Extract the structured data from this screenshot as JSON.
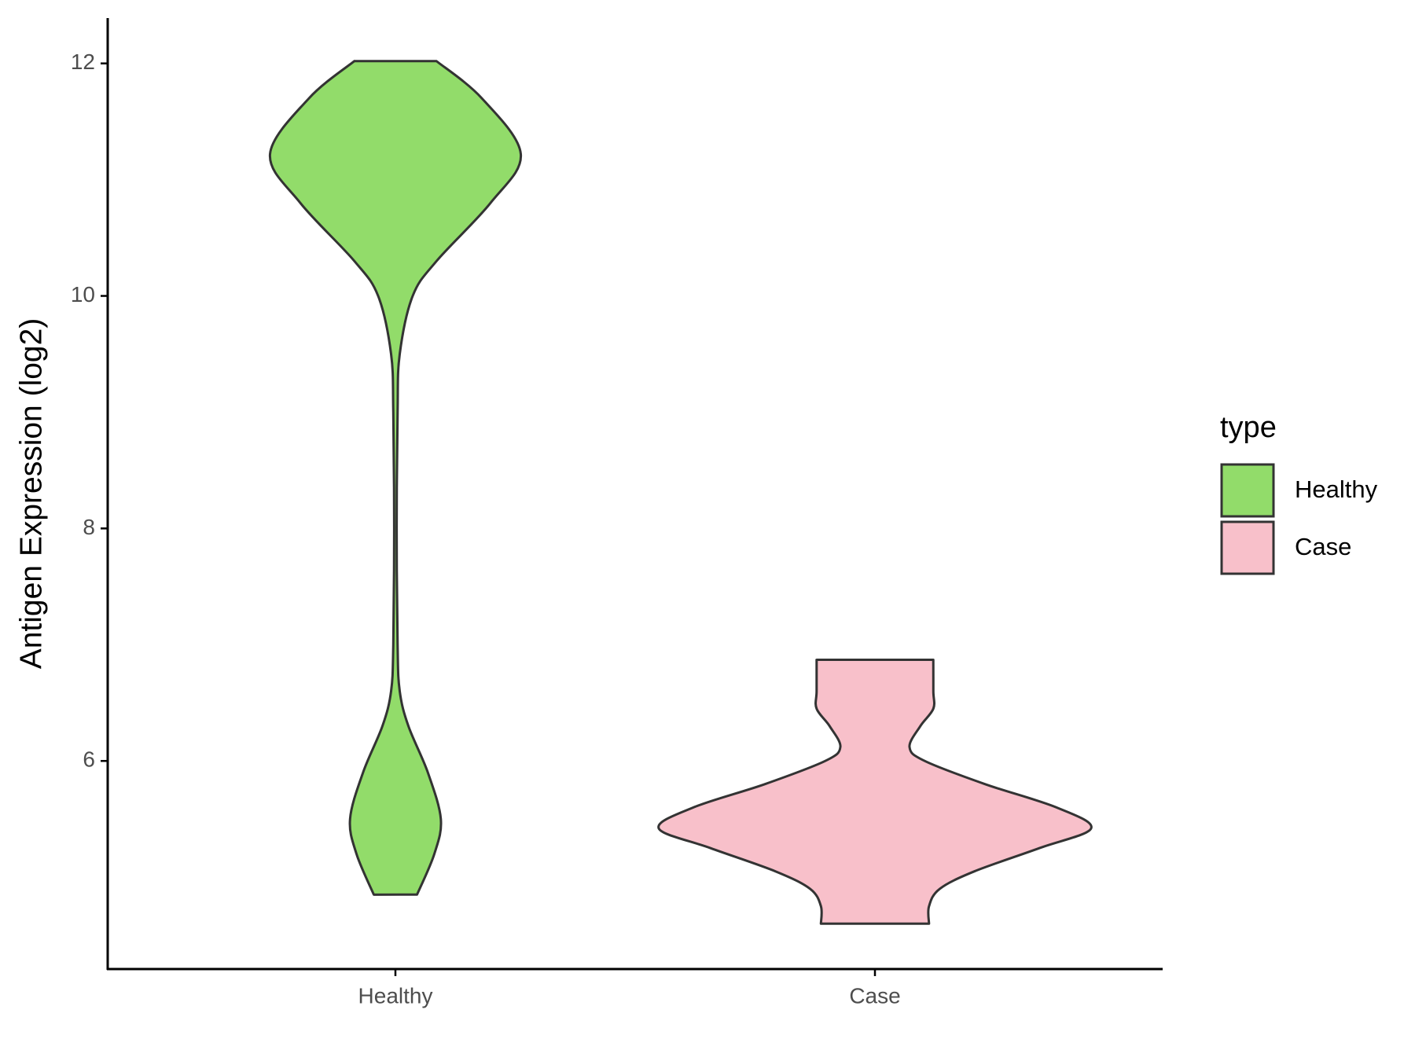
{
  "chart_data": {
    "type": "violin",
    "y_label": "Antigen Expression (log2)",
    "categories": [
      "Healthy",
      "Case"
    ],
    "legend_title": "type",
    "series": [
      {
        "name": "Healthy",
        "color": "#92dc6a",
        "y": [
          12.02,
          11.7,
          11.22,
          10.8,
          10.3,
          10.0,
          9.5,
          9.0,
          8.0,
          7.0,
          6.6,
          6.3,
          5.9,
          5.5,
          5.2,
          4.85
        ],
        "width": [
          0.19,
          0.4,
          0.58,
          0.44,
          0.19,
          0.08,
          0.02,
          0.01,
          0.006,
          0.01,
          0.02,
          0.06,
          0.15,
          0.21,
          0.18,
          0.1
        ]
      },
      {
        "name": "Case",
        "color": "#f8c0ca",
        "y": [
          6.87,
          6.6,
          6.45,
          6.3,
          6.12,
          6.0,
          5.8,
          5.6,
          5.42,
          5.25,
          5.05,
          4.9,
          4.75,
          4.6
        ],
        "width": [
          0.27,
          0.27,
          0.27,
          0.21,
          0.16,
          0.23,
          0.51,
          0.84,
          1,
          0.76,
          0.46,
          0.3,
          0.25,
          0.25
        ]
      }
    ],
    "ylim": [
      4.21,
      12.39
    ],
    "yticks": [
      6,
      8,
      10,
      12
    ]
  }
}
